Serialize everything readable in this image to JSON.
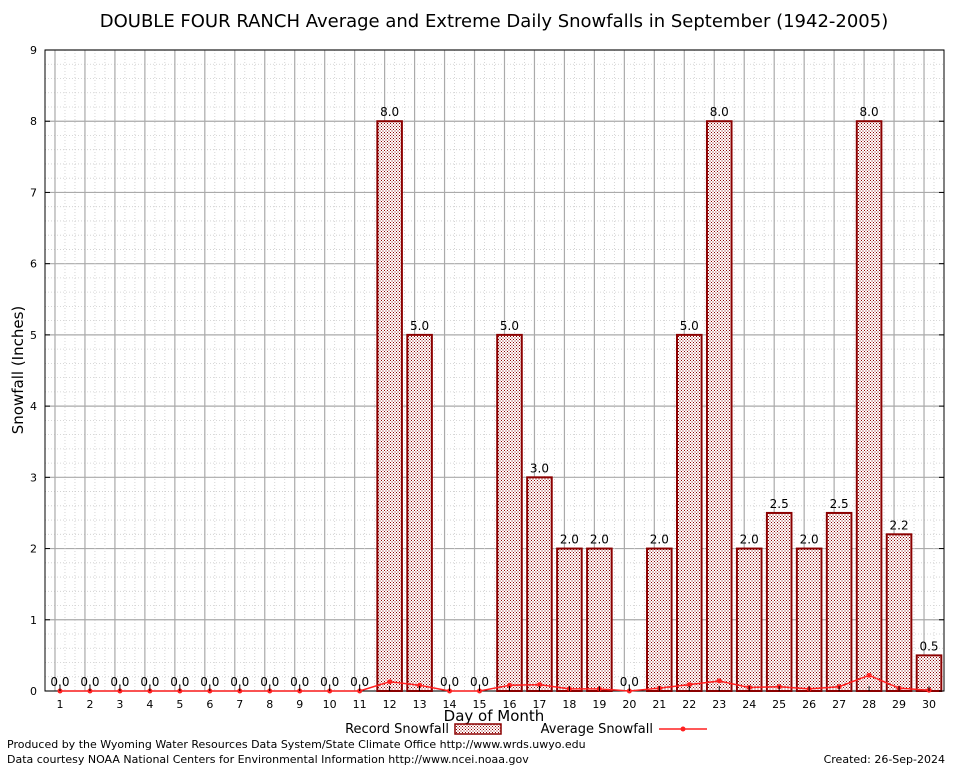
{
  "chart_data": {
    "type": "bar",
    "title": "DOUBLE FOUR RANCH Average and Extreme Daily Snowfalls in September (1942-2005)",
    "xlabel": "Day of Month",
    "ylabel": "Snowfall (Inches)",
    "ylim": [
      0,
      9
    ],
    "yticks": [
      "0",
      "1",
      "2",
      "3",
      "4",
      "5",
      "6",
      "7",
      "8",
      "9"
    ],
    "categories": [
      "1",
      "2",
      "3",
      "4",
      "5",
      "6",
      "7",
      "8",
      "9",
      "10",
      "11",
      "12",
      "13",
      "14",
      "15",
      "16",
      "17",
      "18",
      "19",
      "20",
      "21",
      "22",
      "23",
      "24",
      "25",
      "26",
      "27",
      "28",
      "29",
      "30"
    ],
    "series": [
      {
        "name": "Record Snowfall",
        "kind": "bar",
        "color": "#8b0000",
        "values": [
          0,
          0,
          0,
          0,
          0,
          0,
          0,
          0,
          0,
          0,
          0,
          8,
          5,
          0,
          0,
          5,
          3,
          2,
          2,
          0,
          2,
          5,
          8,
          2,
          2.5,
          2,
          2.5,
          8,
          2.2,
          0.5
        ],
        "labels": [
          "0.0",
          "0.0",
          "0.0",
          "0.0",
          "0.0",
          "0.0",
          "0.0",
          "0.0",
          "0.0",
          "0.0",
          "0.0",
          "8.0",
          "5.0",
          "0.0",
          "0.0",
          "5.0",
          "3.0",
          "2.0",
          "2.0",
          "0.0",
          "2.0",
          "5.0",
          "8.0",
          "2.0",
          "2.5",
          "2.0",
          "2.5",
          "8.0",
          "2.2",
          "0.5"
        ]
      },
      {
        "name": "Average Snowfall",
        "kind": "line",
        "color": "#ff2020",
        "values": [
          0,
          0,
          0,
          0,
          0,
          0,
          0,
          0,
          0,
          0,
          0,
          0.13,
          0.08,
          0,
          0,
          0.08,
          0.09,
          0.03,
          0.03,
          0,
          0.04,
          0.09,
          0.14,
          0.05,
          0.06,
          0.03,
          0.06,
          0.22,
          0.04,
          0.01
        ]
      }
    ],
    "grid": true,
    "legend": "bottom"
  },
  "footer": {
    "line1": "Produced by the Wyoming Water Resources Data System/State Climate Office http://www.wrds.uwyo.edu",
    "line2": "Data courtesy NOAA National Centers for Environmental Information http://www.ncei.noaa.gov",
    "created": "Created: 26-Sep-2024"
  }
}
